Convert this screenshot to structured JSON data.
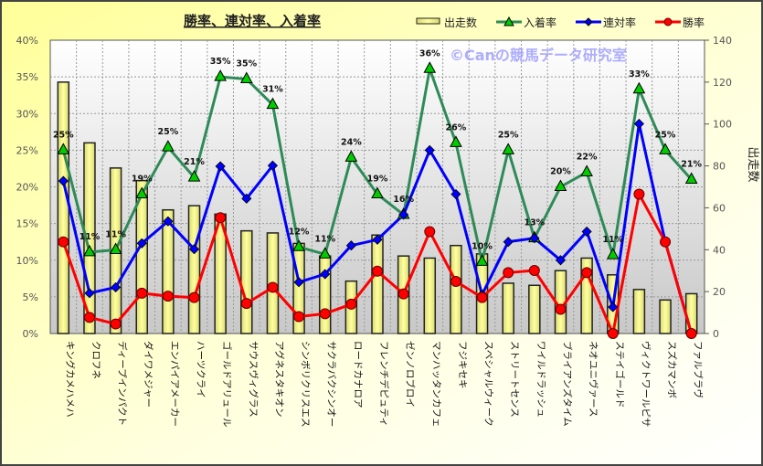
{
  "chart_data": {
    "type": "bar+line",
    "title": "勝率、連対率、入着率",
    "watermark": "©Canの競馬データ研究室",
    "ylabel_right": "出走数",
    "ylim_left": [
      0,
      40
    ],
    "ylim_right": [
      0,
      140
    ],
    "yticks_left": [
      "0%",
      "5%",
      "10%",
      "15%",
      "20%",
      "25%",
      "30%",
      "35%",
      "40%"
    ],
    "yticks_right": [
      "0",
      "20",
      "40",
      "60",
      "80",
      "100",
      "120",
      "140"
    ],
    "grid": true,
    "legend_position": "top-right",
    "categories": [
      "キングカメハメハ",
      "クロフネ",
      "ディープインパクト",
      "ダイワメジャー",
      "エンパイアメーカー",
      "ハーツクライ",
      "ゴールドアリュール",
      "サウスヴィグラス",
      "アグネスタキオン",
      "シンボリクリスエス",
      "サクラバクシンオー",
      "ロードカナロア",
      "フレンチデピュティ",
      "ゼンノロブロイ",
      "マンハッタンカフェ",
      "フジキセキ",
      "スペシャルウィーク",
      "ストリートセンス",
      "ワイルドラッシュ",
      "ブライアンズタイム",
      "ネオユニヴァース",
      "ステイゴールド",
      "ヴィクトワールピサ",
      "スズカマンボ",
      "ファルブラヴ"
    ],
    "series": [
      {
        "name": "出走数",
        "type": "bar",
        "axis": "right",
        "color": "#ffff99",
        "values": [
          120,
          91,
          79,
          73,
          59,
          61,
          57,
          49,
          48,
          43,
          37,
          25,
          47,
          37,
          36,
          42,
          38,
          24,
          23,
          30,
          36,
          28,
          21,
          16,
          19
        ]
      },
      {
        "name": "入着率",
        "type": "line",
        "axis": "left",
        "color": "#2e8b57",
        "marker": "triangle",
        "marker_color": "#00cc00",
        "values": [
          25,
          11.1,
          11.4,
          19,
          25.4,
          21.3,
          35,
          34.7,
          31.2,
          11.8,
          10.8,
          24,
          19,
          16.2,
          36.1,
          26,
          9.8,
          25,
          13,
          20,
          22,
          10.7,
          33.3,
          25,
          21
        ],
        "labels": [
          "25%",
          "11%",
          "11%",
          "19%",
          "25%",
          "21%",
          "35%",
          "35%",
          "31%",
          "12%",
          "11%",
          "24%",
          "19%",
          "16%",
          "36%",
          "26%",
          "10%",
          "25%",
          "13%",
          "20%",
          "22%",
          "11%",
          "33%",
          "25%",
          "21%"
        ]
      },
      {
        "name": "連対率",
        "type": "line",
        "axis": "left",
        "color": "#0000ff",
        "marker": "diamond",
        "values": [
          20.8,
          5.5,
          6.3,
          12.3,
          15.3,
          11.5,
          22.8,
          18.4,
          22.9,
          7.0,
          8.1,
          12.0,
          12.8,
          16.2,
          25.0,
          19.0,
          5.3,
          12.5,
          13.0,
          10.0,
          13.9,
          3.6,
          28.6,
          12.5,
          0
        ]
      },
      {
        "name": "勝率",
        "type": "line",
        "axis": "left",
        "color": "#ff0000",
        "marker": "circle",
        "values": [
          12.5,
          2.2,
          1.3,
          5.5,
          5.1,
          4.9,
          15.8,
          4.1,
          6.3,
          2.3,
          2.7,
          4.0,
          8.5,
          5.4,
          13.9,
          7.1,
          4.9,
          8.3,
          8.6,
          3.3,
          8.3,
          0,
          19.0,
          12.5,
          0
        ]
      }
    ]
  }
}
